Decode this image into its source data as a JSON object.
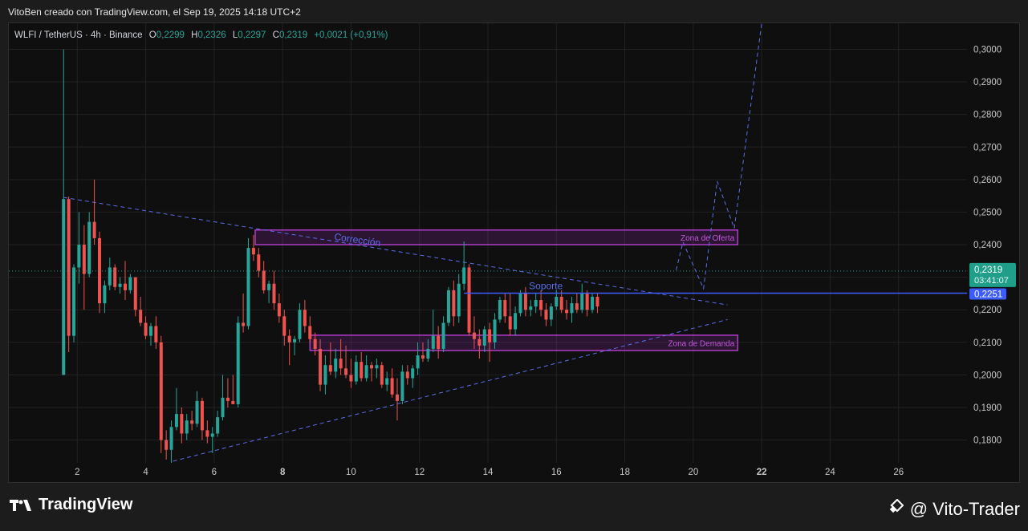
{
  "header": {
    "caption": "VitoBen creado con TradingView.com, el Sep 19, 2025 14:18 UTC+2",
    "symbol": "WLFI / TetherUS · 4h · Binance",
    "o_label": "O",
    "o_value": "0,2299",
    "h_label": "H",
    "h_value": "0,2326",
    "l_label": "L",
    "l_value": "0,2297",
    "c_label": "C",
    "c_value": "0,2319",
    "change": "+0,0021 (+0,91%)"
  },
  "footer": {
    "brand": "TradingView",
    "author": "@ Vito-Trader"
  },
  "colors": {
    "up": "#26a69a",
    "down": "#ef5350",
    "zone": "#b03cc8",
    "trend": "#5b6ee8",
    "support": "#3d5cff",
    "price_tag": "#1f9e8a"
  },
  "chart_data": {
    "type": "candlestick",
    "ylim": [
      0.173,
      0.308
    ],
    "xlim": [
      0,
      28
    ],
    "y_ticks": [
      "0,1800",
      "0,1900",
      "0,2000",
      "0,2100",
      "0,2200",
      "0,2300",
      "0,2400",
      "0,2500",
      "0,2600",
      "0,2700",
      "0,2800",
      "0,2900",
      "0,3000"
    ],
    "x_ticks": [
      {
        "label": "2",
        "bold": false
      },
      {
        "label": "4",
        "bold": false
      },
      {
        "label": "6",
        "bold": false
      },
      {
        "label": "8",
        "bold": true
      },
      {
        "label": "10",
        "bold": false
      },
      {
        "label": "12",
        "bold": false
      },
      {
        "label": "14",
        "bold": false
      },
      {
        "label": "16",
        "bold": false
      },
      {
        "label": "18",
        "bold": false
      },
      {
        "label": "20",
        "bold": false
      },
      {
        "label": "22",
        "bold": true
      },
      {
        "label": "24",
        "bold": false
      },
      {
        "label": "26",
        "bold": false
      }
    ],
    "current_price": {
      "value": 0.2319,
      "label": "0,2319",
      "countdown": "03:41:07"
    },
    "support_level": {
      "value": 0.2251,
      "label": "0,2251",
      "text": "Soporte"
    },
    "zones": [
      {
        "name": "Zona de Oferta",
        "x0": 7.2,
        "x1": 21.3,
        "y0": 0.24,
        "y1": 0.2445
      },
      {
        "name": "Zona de Demanda",
        "x0": 8.8,
        "x1": 21.3,
        "y0": 0.2075,
        "y1": 0.2122
      }
    ],
    "annotations": [
      {
        "text": "Corrección",
        "x": 9.5,
        "y": 0.2415
      }
    ],
    "trendlines": [
      {
        "x0": 1.6,
        "y0": 0.2545,
        "x1": 21.0,
        "y1": 0.2215
      },
      {
        "x0": 4.8,
        "y0": 0.1735,
        "x1": 21.0,
        "y1": 0.217
      }
    ],
    "projection": [
      [
        19.5,
        0.2322
      ],
      [
        19.7,
        0.2408
      ],
      [
        20.3,
        0.2265
      ],
      [
        20.7,
        0.2595
      ],
      [
        21.2,
        0.245
      ],
      [
        22.0,
        0.308
      ]
    ],
    "candles": [
      [
        1.6,
        0.2,
        0.3,
        0.2,
        0.254
      ],
      [
        1.75,
        0.254,
        0.2548,
        0.207,
        0.212
      ],
      [
        1.9,
        0.212,
        0.234,
        0.21,
        0.233
      ],
      [
        2.05,
        0.233,
        0.25,
        0.228,
        0.24
      ],
      [
        2.2,
        0.24,
        0.246,
        0.22,
        0.231
      ],
      [
        2.35,
        0.231,
        0.25,
        0.23,
        0.247
      ],
      [
        2.5,
        0.247,
        0.26,
        0.24,
        0.242
      ],
      [
        2.65,
        0.242,
        0.244,
        0.219,
        0.222
      ],
      [
        2.8,
        0.222,
        0.229,
        0.219,
        0.2275
      ],
      [
        2.95,
        0.2275,
        0.236,
        0.226,
        0.233
      ],
      [
        3.1,
        0.233,
        0.234,
        0.226,
        0.227
      ],
      [
        3.25,
        0.227,
        0.23,
        0.225,
        0.228
      ],
      [
        3.4,
        0.228,
        0.235,
        0.223,
        0.226
      ],
      [
        3.55,
        0.226,
        0.231,
        0.225,
        0.23
      ],
      [
        3.7,
        0.23,
        0.23,
        0.218,
        0.22
      ],
      [
        3.85,
        0.22,
        0.224,
        0.215,
        0.216
      ],
      [
        4.0,
        0.216,
        0.218,
        0.211,
        0.212
      ],
      [
        4.15,
        0.212,
        0.216,
        0.209,
        0.215
      ],
      [
        4.3,
        0.215,
        0.218,
        0.208,
        0.21
      ],
      [
        4.45,
        0.21,
        0.212,
        0.176,
        0.18
      ],
      [
        4.6,
        0.18,
        0.183,
        0.174,
        0.177
      ],
      [
        4.75,
        0.177,
        0.186,
        0.173,
        0.184
      ],
      [
        4.9,
        0.184,
        0.196,
        0.183,
        0.188
      ],
      [
        5.05,
        0.188,
        0.19,
        0.179,
        0.182
      ],
      [
        5.2,
        0.182,
        0.188,
        0.18,
        0.186
      ],
      [
        5.35,
        0.186,
        0.189,
        0.183,
        0.185
      ],
      [
        5.5,
        0.185,
        0.195,
        0.184,
        0.192
      ],
      [
        5.65,
        0.192,
        0.193,
        0.18,
        0.183
      ],
      [
        5.8,
        0.183,
        0.186,
        0.179,
        0.181
      ],
      [
        5.95,
        0.181,
        0.184,
        0.176,
        0.182
      ],
      [
        6.1,
        0.182,
        0.189,
        0.181,
        0.187
      ],
      [
        6.25,
        0.187,
        0.2,
        0.186,
        0.193
      ],
      [
        6.4,
        0.193,
        0.199,
        0.19,
        0.192
      ],
      [
        6.55,
        0.192,
        0.2,
        0.191,
        0.191
      ],
      [
        6.7,
        0.191,
        0.218,
        0.19,
        0.216
      ],
      [
        6.85,
        0.216,
        0.225,
        0.213,
        0.215
      ],
      [
        7.0,
        0.215,
        0.242,
        0.214,
        0.239
      ],
      [
        7.15,
        0.239,
        0.243,
        0.235,
        0.237
      ],
      [
        7.3,
        0.237,
        0.239,
        0.23,
        0.232
      ],
      [
        7.45,
        0.232,
        0.235,
        0.225,
        0.226
      ],
      [
        7.6,
        0.226,
        0.229,
        0.222,
        0.228
      ],
      [
        7.75,
        0.228,
        0.232,
        0.22,
        0.222
      ],
      [
        7.9,
        0.222,
        0.225,
        0.216,
        0.218
      ],
      [
        8.05,
        0.218,
        0.22,
        0.209,
        0.212
      ],
      [
        8.2,
        0.212,
        0.214,
        0.203,
        0.21
      ],
      [
        8.35,
        0.21,
        0.212,
        0.206,
        0.211
      ],
      [
        8.5,
        0.211,
        0.222,
        0.21,
        0.22
      ],
      [
        8.65,
        0.22,
        0.223,
        0.213,
        0.215
      ],
      [
        8.8,
        0.215,
        0.218,
        0.21,
        0.211
      ],
      [
        8.95,
        0.211,
        0.213,
        0.206,
        0.208
      ],
      [
        9.1,
        0.208,
        0.211,
        0.195,
        0.197
      ],
      [
        9.25,
        0.197,
        0.206,
        0.194,
        0.203
      ],
      [
        9.4,
        0.203,
        0.21,
        0.2,
        0.201
      ],
      [
        9.55,
        0.201,
        0.208,
        0.199,
        0.205
      ],
      [
        9.7,
        0.205,
        0.211,
        0.2,
        0.202
      ],
      [
        9.85,
        0.202,
        0.209,
        0.199,
        0.2
      ],
      [
        10.0,
        0.2,
        0.205,
        0.196,
        0.198
      ],
      [
        10.15,
        0.198,
        0.206,
        0.197,
        0.204
      ],
      [
        10.3,
        0.204,
        0.207,
        0.198,
        0.199
      ],
      [
        10.45,
        0.199,
        0.206,
        0.198,
        0.203
      ],
      [
        10.6,
        0.203,
        0.204,
        0.198,
        0.202
      ],
      [
        10.75,
        0.202,
        0.205,
        0.199,
        0.203
      ],
      [
        10.9,
        0.203,
        0.204,
        0.196,
        0.197
      ],
      [
        11.05,
        0.197,
        0.201,
        0.195,
        0.199
      ],
      [
        11.2,
        0.199,
        0.202,
        0.193,
        0.194
      ],
      [
        11.35,
        0.194,
        0.199,
        0.186,
        0.192
      ],
      [
        11.5,
        0.192,
        0.203,
        0.191,
        0.201
      ],
      [
        11.65,
        0.201,
        0.203,
        0.197,
        0.199
      ],
      [
        11.8,
        0.199,
        0.203,
        0.196,
        0.202
      ],
      [
        11.95,
        0.202,
        0.21,
        0.2,
        0.206
      ],
      [
        12.1,
        0.206,
        0.21,
        0.204,
        0.205
      ],
      [
        12.25,
        0.205,
        0.211,
        0.204,
        0.208
      ],
      [
        12.4,
        0.208,
        0.22,
        0.207,
        0.212
      ],
      [
        12.55,
        0.212,
        0.215,
        0.205,
        0.208
      ],
      [
        12.7,
        0.208,
        0.218,
        0.207,
        0.216
      ],
      [
        12.85,
        0.216,
        0.227,
        0.215,
        0.226
      ],
      [
        13.0,
        0.226,
        0.229,
        0.215,
        0.218
      ],
      [
        13.15,
        0.218,
        0.231,
        0.216,
        0.228
      ],
      [
        13.3,
        0.228,
        0.241,
        0.226,
        0.233
      ],
      [
        13.45,
        0.233,
        0.234,
        0.212,
        0.213
      ],
      [
        13.6,
        0.213,
        0.218,
        0.208,
        0.211
      ],
      [
        13.75,
        0.211,
        0.214,
        0.205,
        0.209
      ],
      [
        13.9,
        0.209,
        0.215,
        0.207,
        0.214
      ],
      [
        14.05,
        0.214,
        0.216,
        0.204,
        0.21
      ],
      [
        14.2,
        0.21,
        0.219,
        0.208,
        0.217
      ],
      [
        14.35,
        0.217,
        0.224,
        0.216,
        0.223
      ],
      [
        14.5,
        0.223,
        0.225,
        0.216,
        0.218
      ],
      [
        14.65,
        0.218,
        0.225,
        0.212,
        0.214
      ],
      [
        14.8,
        0.214,
        0.221,
        0.212,
        0.219
      ],
      [
        14.95,
        0.219,
        0.226,
        0.218,
        0.225
      ],
      [
        15.1,
        0.225,
        0.227,
        0.218,
        0.22
      ],
      [
        15.25,
        0.22,
        0.223,
        0.218,
        0.221
      ],
      [
        15.4,
        0.221,
        0.225,
        0.219,
        0.223
      ],
      [
        15.55,
        0.223,
        0.226,
        0.218,
        0.22
      ],
      [
        15.7,
        0.22,
        0.222,
        0.215,
        0.217
      ],
      [
        15.85,
        0.217,
        0.222,
        0.215,
        0.221
      ],
      [
        16.0,
        0.221,
        0.226,
        0.22,
        0.224
      ],
      [
        16.15,
        0.224,
        0.226,
        0.219,
        0.22
      ],
      [
        16.3,
        0.22,
        0.223,
        0.217,
        0.219
      ],
      [
        16.45,
        0.219,
        0.224,
        0.216,
        0.222
      ],
      [
        16.6,
        0.222,
        0.225,
        0.219,
        0.22
      ],
      [
        16.75,
        0.22,
        0.228,
        0.219,
        0.225
      ],
      [
        16.9,
        0.225,
        0.226,
        0.218,
        0.22
      ],
      [
        17.05,
        0.22,
        0.225,
        0.219,
        0.224
      ],
      [
        17.2,
        0.224,
        0.225,
        0.219,
        0.221
      ]
    ]
  }
}
